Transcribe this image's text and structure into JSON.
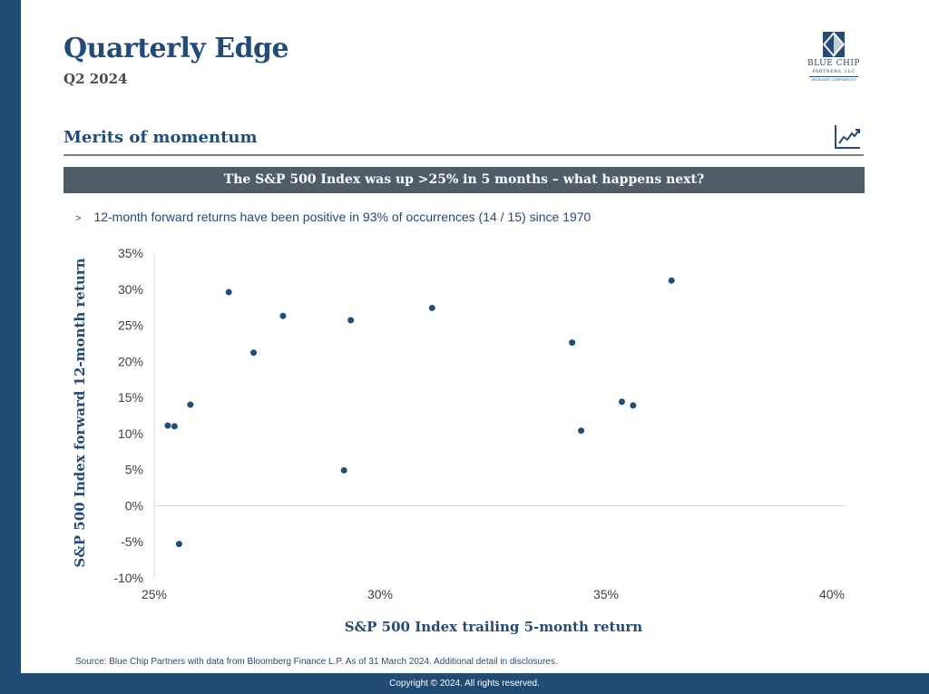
{
  "header": {
    "title": "Quarterly Edge",
    "subtitle": "Q2 2024"
  },
  "logo": {
    "name_line1": "BLUE CHIP",
    "name_line2": "PARTNERS, LLC",
    "tagline": "DELEGATE CONFIDENTLY"
  },
  "section": {
    "title": "Merits of momentum",
    "icon": "trend-chart-icon"
  },
  "banner": {
    "text": "The S&P 500  Index was up >25% in 5 months – what happens next?"
  },
  "bullet": {
    "marker": ">",
    "text": "12-month forward returns have been positive in 93% of occurrences (14 / 15) since 1970"
  },
  "source": "Source: Blue Chip Partners with data from Bloomberg Finance L.P. As of 31 March 2024. Additional detail in disclosures.",
  "footer": "Copyright © 2024. All rights reserved.",
  "colors": {
    "brand_blue": "#224b74",
    "banner_gray": "#4f5d69",
    "point": "#1f4e79"
  },
  "chart_data": {
    "type": "scatter",
    "xlabel": "S&P 500 Index trailing 5-month return",
    "ylabel": "S&P 500 Index forward 12-month return",
    "xlim": [
      25,
      40
    ],
    "ylim": [
      -10,
      35
    ],
    "x_ticks": [
      25,
      30,
      35,
      40
    ],
    "y_ticks": [
      35,
      30,
      25,
      20,
      15,
      10,
      5,
      0,
      -5,
      -10
    ],
    "tick_suffix": "%",
    "grid": false,
    "points": [
      {
        "x": 25.3,
        "y": 11.1
      },
      {
        "x": 25.45,
        "y": 11.0
      },
      {
        "x": 25.55,
        "y": -5.3
      },
      {
        "x": 25.8,
        "y": 14.0
      },
      {
        "x": 26.65,
        "y": 29.6
      },
      {
        "x": 27.2,
        "y": 21.2
      },
      {
        "x": 27.85,
        "y": 26.3
      },
      {
        "x": 29.2,
        "y": 4.9
      },
      {
        "x": 29.35,
        "y": 25.7
      },
      {
        "x": 31.15,
        "y": 27.4
      },
      {
        "x": 34.25,
        "y": 22.6
      },
      {
        "x": 34.45,
        "y": 10.4
      },
      {
        "x": 35.35,
        "y": 14.4
      },
      {
        "x": 35.6,
        "y": 13.9
      },
      {
        "x": 36.45,
        "y": 31.2
      }
    ]
  }
}
